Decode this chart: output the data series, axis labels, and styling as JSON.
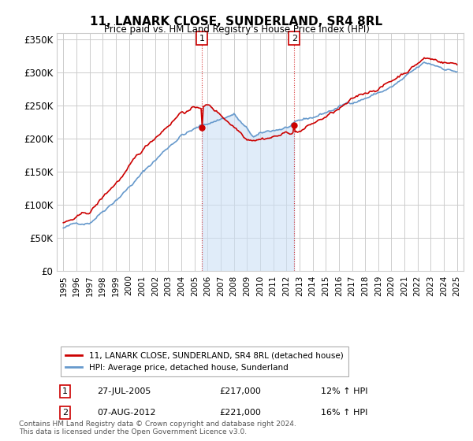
{
  "title": "11, LANARK CLOSE, SUNDERLAND, SR4 8RL",
  "subtitle": "Price paid vs. HM Land Registry's House Price Index (HPI)",
  "hpi_color": "#6699cc",
  "price_color": "#cc0000",
  "background_color": "#ffffff",
  "plot_bg_color": "#ffffff",
  "grid_color": "#cccccc",
  "shade_color": "#cce0f5",
  "ylim": [
    0,
    360000
  ],
  "yticks": [
    0,
    50000,
    100000,
    150000,
    200000,
    250000,
    300000,
    350000
  ],
  "ytick_labels": [
    "£0",
    "£50K",
    "£100K",
    "£150K",
    "£200K",
    "£250K",
    "£300K",
    "£350K"
  ],
  "sale1": {
    "date": "27-JUL-2005",
    "price": 217000,
    "hpi_pct": "12%",
    "label": "1",
    "x_year": 2005.57
  },
  "sale2": {
    "date": "07-AUG-2012",
    "price": 221000,
    "hpi_pct": "16%",
    "label": "2",
    "x_year": 2012.6
  },
  "legend_property": "11, LANARK CLOSE, SUNDERLAND, SR4 8RL (detached house)",
  "legend_hpi": "HPI: Average price, detached house, Sunderland",
  "footnote": "Contains HM Land Registry data © Crown copyright and database right 2024.\nThis data is licensed under the Open Government Licence v3.0.",
  "xlim_start": 1994.5,
  "xlim_end": 2025.5
}
